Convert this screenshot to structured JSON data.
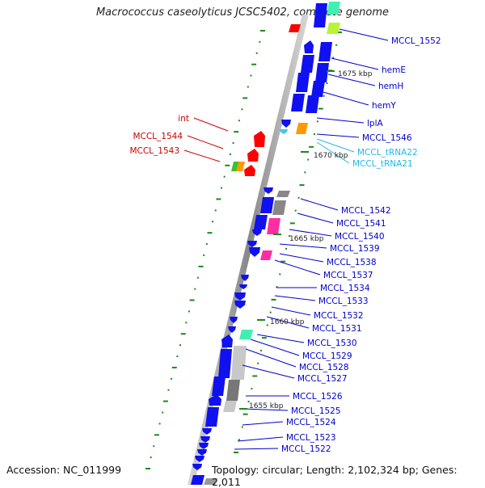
{
  "title": "Macrococcus caseolyticus JCSC5402, complete genome",
  "footer": {
    "accession": "Accession: NC_011999",
    "summary": "Topology: circular; Length: 2,102,324 bp; Genes: 2,011"
  },
  "colors": {
    "cds_forward": "#1010f0",
    "cds_other": "#1010f0",
    "rna": "#40c8f0",
    "mobile": "#ff0000",
    "pseudo": "#888888",
    "pink": "#ff2ea0",
    "orange": "#ff9900",
    "green": "#33c433",
    "teal": "#40f0b0",
    "lime": "#b7f43a",
    "label_blue": "#0000cc",
    "label_red": "#cc0000",
    "label_cyan": "#22b8e8",
    "backbone": "#999999",
    "tick": "#1a8a1a"
  },
  "kbp_markers": [
    "1675 kbp",
    "1670 kbp",
    "1665 kbp",
    "1660 kbp",
    "1655 kbp"
  ],
  "labels_blue": [
    "MCCL_1552",
    "hemE",
    "hemH",
    "hemY",
    "lplA",
    "MCCL_1546",
    "MCCL_1542",
    "MCCL_1541",
    "MCCL_1540",
    "MCCL_1539",
    "MCCL_1538",
    "MCCL_1537",
    "MCCL_1534",
    "MCCL_1533",
    "MCCL_1532",
    "MCCL_1531",
    "MCCL_1530",
    "MCCL_1529",
    "MCCL_1528",
    "MCCL_1527",
    "MCCL_1526",
    "MCCL_1525",
    "MCCL_1524",
    "MCCL_1523",
    "MCCL_1522"
  ],
  "labels_cyan": [
    "MCCL_tRNA22",
    "MCCL_tRNA21"
  ],
  "labels_red": [
    "int",
    "MCCL_1544",
    "MCCL_1543"
  ]
}
